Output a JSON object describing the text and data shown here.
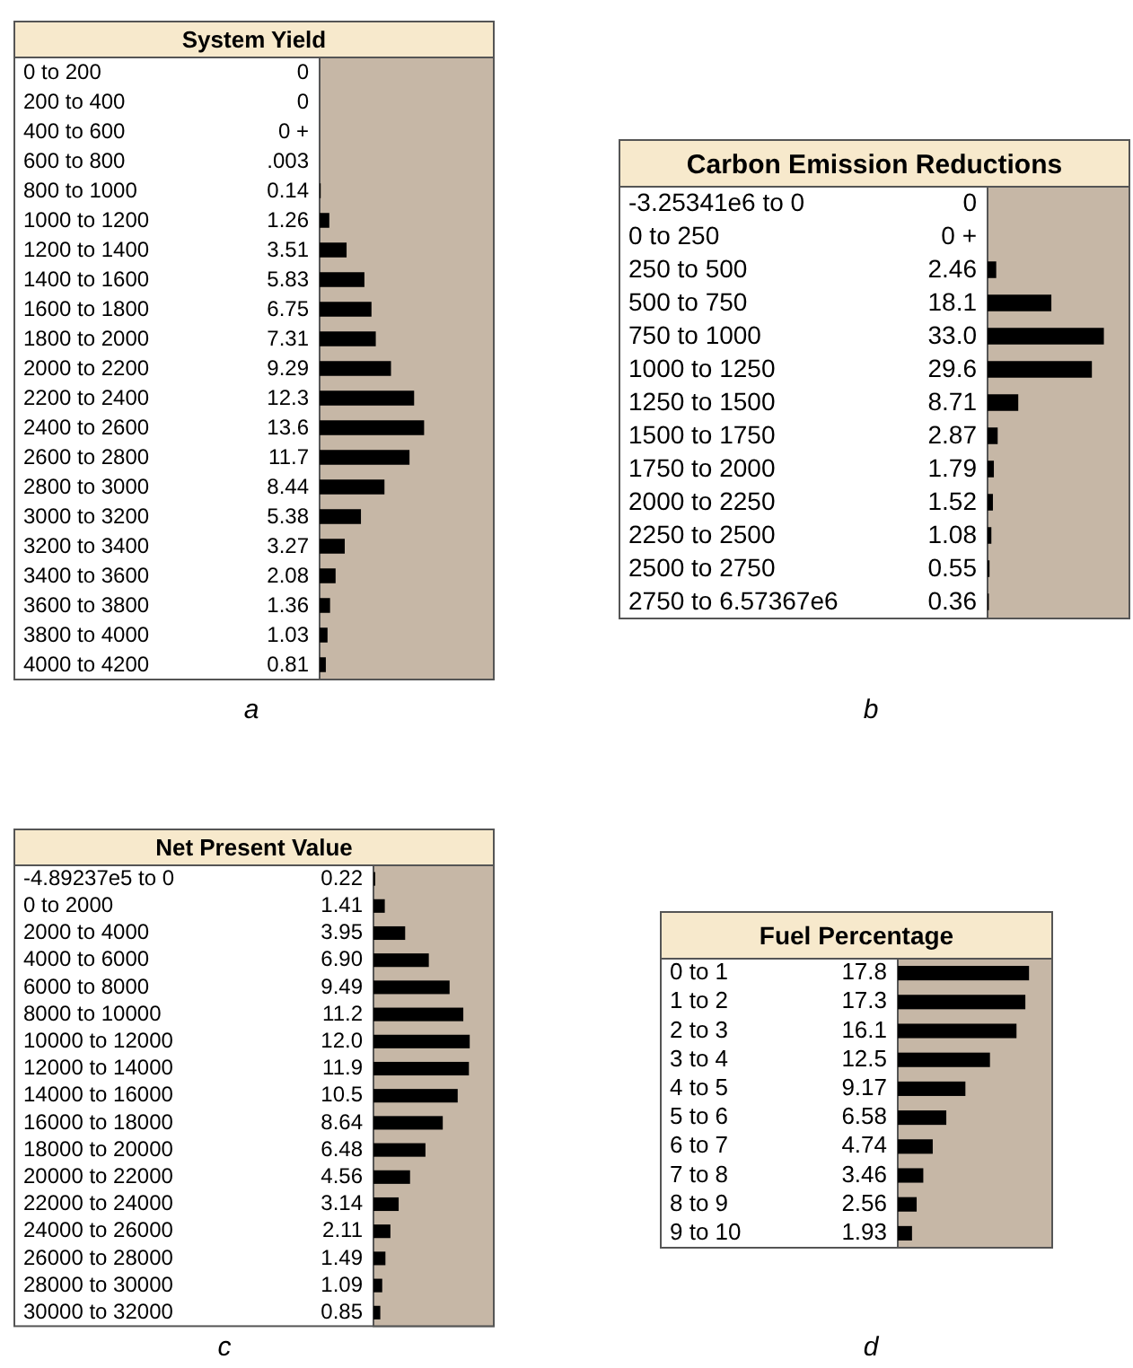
{
  "chart_data": [
    {
      "type": "bar",
      "orientation": "horizontal",
      "title": "System Yield",
      "color": "#000000",
      "annotations": [
        "a"
      ],
      "categories": [
        "0 to 200",
        "200 to 400",
        "400 to 600",
        "600 to 800",
        "800 to 1000",
        "1000 to 1200",
        "1200 to 1400",
        "1400 to 1600",
        "1600 to 1800",
        "1800 to 2000",
        "2000 to 2200",
        "2200 to 2400",
        "2400 to 2600",
        "2600 to 2800",
        "2800 to 3000",
        "3000 to 3200",
        "3200 to 3400",
        "3400 to 3600",
        "3600 to 3800",
        "3800 to 4000",
        "4000 to 4200"
      ],
      "values": [
        0,
        0,
        0,
        0.003,
        0.14,
        1.26,
        3.51,
        5.83,
        6.75,
        7.31,
        9.29,
        12.3,
        13.6,
        11.7,
        8.44,
        5.38,
        3.27,
        2.08,
        1.36,
        1.03,
        0.81
      ],
      "value_labels": [
        "0",
        "0",
        "0 +",
        ".003",
        "0.14",
        "1.26",
        "3.51",
        "5.83",
        "6.75",
        "7.31",
        "9.29",
        "12.3",
        "13.6",
        "11.7",
        "8.44",
        "5.38",
        "3.27",
        "2.08",
        "1.36",
        "1.03",
        "0.81"
      ]
    },
    {
      "type": "bar",
      "orientation": "horizontal",
      "title": "Carbon Emission Reductions",
      "color": "#000000",
      "annotations": [
        "b"
      ],
      "categories": [
        "-3.25341e6 to 0",
        "0 to 250",
        "250 to 500",
        "500 to 750",
        "750 to 1000",
        "1000 to 1250",
        "1250 to 1500",
        "1500 to 1750",
        "1750 to 2000",
        "2000 to 2250",
        "2250 to 2500",
        "2500 to 2750",
        "2750 to 6.57367e6"
      ],
      "values": [
        0,
        0,
        2.46,
        18.1,
        33.0,
        29.6,
        8.71,
        2.87,
        1.79,
        1.52,
        1.08,
        0.55,
        0.36
      ],
      "value_labels": [
        "0",
        "0 +",
        "2.46",
        "18.1",
        "33.0",
        "29.6",
        "8.71",
        "2.87",
        "1.79",
        "1.52",
        "1.08",
        "0.55",
        "0.36"
      ]
    },
    {
      "type": "bar",
      "orientation": "horizontal",
      "title": "Net Present Value",
      "color": "#000000",
      "annotations": [
        "c"
      ],
      "categories": [
        "-4.89237e5 to 0",
        "0 to 2000",
        "2000 to 4000",
        "4000 to 6000",
        "6000 to 8000",
        "8000 to 10000",
        "10000 to 12000",
        "12000 to 14000",
        "14000 to 16000",
        "16000 to 18000",
        "18000 to 20000",
        "20000 to 22000",
        "22000 to 24000",
        "24000 to 26000",
        "26000 to 28000",
        "28000 to 30000",
        "30000 to 32000"
      ],
      "values": [
        0.22,
        1.41,
        3.95,
        6.9,
        9.49,
        11.2,
        12.0,
        11.9,
        10.5,
        8.64,
        6.48,
        4.56,
        3.14,
        2.11,
        1.49,
        1.09,
        0.85
      ],
      "value_labels": [
        "0.22",
        "1.41",
        "3.95",
        "6.90",
        "9.49",
        "11.2",
        "12.0",
        "11.9",
        "10.5",
        "8.64",
        "6.48",
        "4.56",
        "3.14",
        "2.11",
        "1.49",
        "1.09",
        "0.85"
      ]
    },
    {
      "type": "bar",
      "orientation": "horizontal",
      "title": "Fuel Percentage",
      "color": "#000000",
      "annotations": [
        "d"
      ],
      "categories": [
        "0 to 1",
        "1 to 2",
        "2 to 3",
        "3 to 4",
        "4 to 5",
        "5 to 6",
        "6 to 7",
        "7 to 8",
        "8 to 9",
        "9 to 10"
      ],
      "values": [
        17.8,
        17.3,
        16.1,
        12.5,
        9.17,
        6.58,
        4.74,
        3.46,
        2.56,
        1.93
      ],
      "value_labels": [
        "17.8",
        "17.3",
        "16.1",
        "12.5",
        "9.17",
        "6.58",
        "4.74",
        "3.46",
        "2.56",
        "1.93"
      ]
    }
  ]
}
